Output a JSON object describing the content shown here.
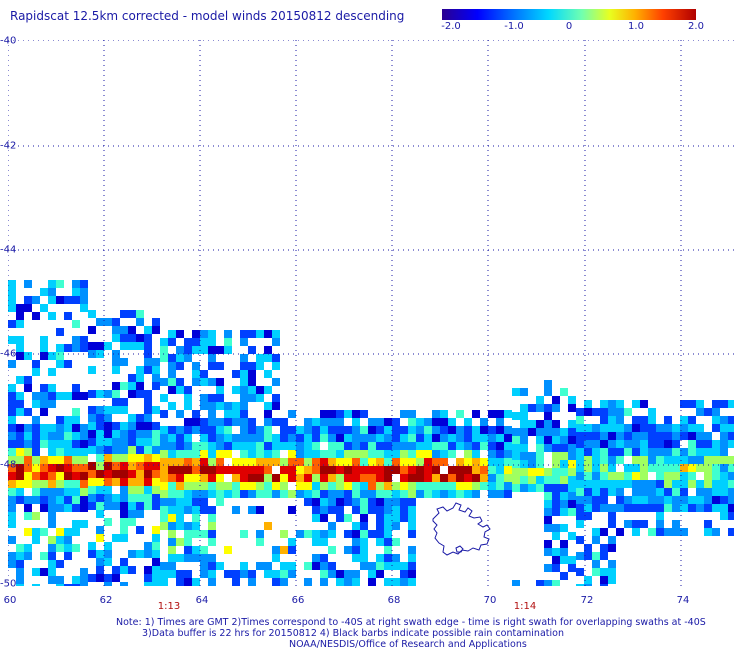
{
  "title": "Rapidscat 12.5km corrected - model winds 20150812 descending",
  "colorbar": {
    "ticks": [
      "-2.0",
      "-1.0",
      "0",
      "1.0",
      "2.0"
    ]
  },
  "map": {
    "lat_labels": [
      "-40",
      "-42",
      "-44",
      "-46",
      "-48",
      "-50"
    ],
    "lon_labels": [
      "60",
      "62",
      "64",
      "66",
      "68",
      "70",
      "72",
      "74"
    ],
    "time_labels": [
      "1:13",
      "1:14"
    ],
    "grid": "dotted",
    "coastline": "Kerguelen Islands"
  },
  "notes": {
    "line1": "Note: 1) Times are GMT 2)Times correspond to -40S at right swath edge - time is right swath for overlapping swaths at -40S",
    "line2": "3)Data buffer is 22 hrs for 20150812 4) Black barbs indicate possible rain contamination",
    "line3": "NOAA/NESDIS/Office of Research and Applications"
  }
}
